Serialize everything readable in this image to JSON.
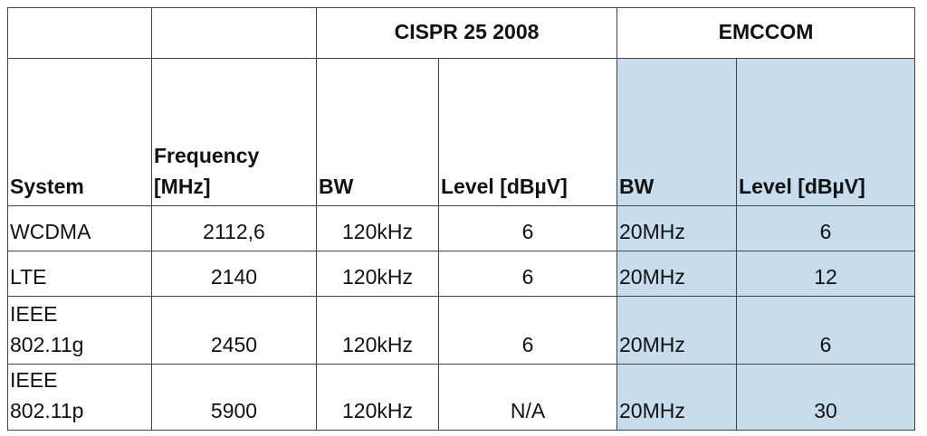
{
  "table": {
    "group_header": [
      "",
      "",
      "CISPR 25 2008",
      "EMCCOM"
    ],
    "header": [
      "System",
      "Frequency [MHz]",
      "BW",
      "Level [dBµV]",
      "BW",
      "Level [dBµV]"
    ],
    "rows": [
      [
        "WCDMA",
        "2112,6",
        "120kHz",
        "6",
        "20MHz",
        "6"
      ],
      [
        "LTE",
        "2140",
        "120kHz",
        "6",
        "20MHz",
        "12"
      ],
      [
        "IEEE 802.11g",
        "2450",
        "120kHz",
        "6",
        "20MHz",
        "6"
      ],
      [
        "IEEE 802.11p",
        "5900",
        "120kHz",
        "N/A",
        "20MHz",
        "30"
      ]
    ]
  }
}
